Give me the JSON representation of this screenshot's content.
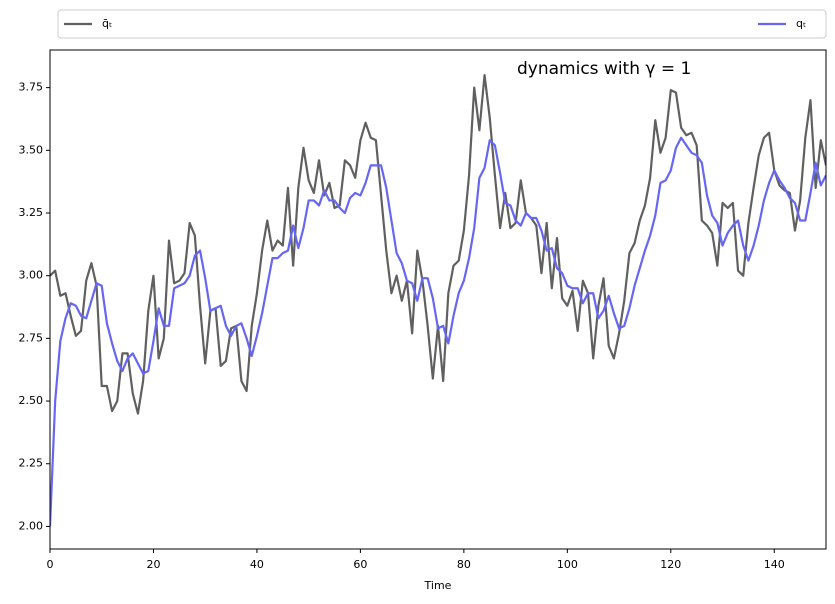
{
  "chart_data": {
    "type": "line",
    "annotation": "dynamics with γ = 1",
    "xlabel": "Time",
    "x": [
      0,
      1,
      2,
      3,
      4,
      5,
      6,
      7,
      8,
      9,
      10,
      11,
      12,
      13,
      14,
      15,
      16,
      17,
      18,
      19,
      20,
      21,
      22,
      23,
      24,
      25,
      26,
      27,
      28,
      29,
      30,
      31,
      32,
      33,
      34,
      35,
      36,
      37,
      38,
      39,
      40,
      41,
      42,
      43,
      44,
      45,
      46,
      47,
      48,
      49,
      50,
      51,
      52,
      53,
      54,
      55,
      56,
      57,
      58,
      59,
      60,
      61,
      62,
      63,
      64,
      65,
      66,
      67,
      68,
      69,
      70,
      71,
      72,
      73,
      74,
      75,
      76,
      77,
      78,
      79,
      80,
      81,
      82,
      83,
      84,
      85,
      86,
      87,
      88,
      89,
      90,
      91,
      92,
      93,
      94,
      95,
      96,
      97,
      98,
      99,
      100,
      101,
      102,
      103,
      104,
      105,
      106,
      107,
      108,
      109,
      110,
      111,
      112,
      113,
      114,
      115,
      116,
      117,
      118,
      119,
      120,
      121,
      122,
      123,
      124,
      125,
      126,
      127,
      128,
      129,
      130,
      131,
      132,
      133,
      134,
      135,
      136,
      137,
      138,
      139,
      140,
      141,
      142,
      143,
      144,
      145,
      146,
      147,
      148,
      149,
      150
    ],
    "series": [
      {
        "name": "q̄ₜ",
        "color": "#606060",
        "values": [
          3.0,
          3.02,
          2.92,
          2.93,
          2.84,
          2.76,
          2.78,
          2.98,
          3.05,
          2.96,
          2.56,
          2.56,
          2.46,
          2.5,
          2.69,
          2.69,
          2.53,
          2.45,
          2.58,
          2.86,
          3.0,
          2.67,
          2.75,
          3.14,
          2.97,
          2.98,
          3.01,
          3.21,
          3.16,
          2.88,
          2.65,
          2.86,
          2.87,
          2.64,
          2.66,
          2.79,
          2.8,
          2.58,
          2.54,
          2.8,
          2.93,
          3.1,
          3.22,
          3.1,
          3.14,
          3.12,
          3.35,
          3.04,
          3.35,
          3.51,
          3.38,
          3.33,
          3.46,
          3.32,
          3.37,
          3.27,
          3.28,
          3.46,
          3.44,
          3.39,
          3.54,
          3.61,
          3.55,
          3.54,
          3.32,
          3.1,
          2.93,
          3.0,
          2.9,
          2.98,
          2.77,
          3.1,
          2.98,
          2.8,
          2.59,
          2.8,
          2.58,
          2.93,
          3.04,
          3.06,
          3.18,
          3.4,
          3.75,
          3.58,
          3.8,
          3.63,
          3.4,
          3.19,
          3.33,
          3.19,
          3.21,
          3.38,
          3.25,
          3.23,
          3.2,
          3.01,
          3.21,
          2.95,
          3.15,
          2.91,
          2.88,
          2.94,
          2.78,
          2.98,
          2.93,
          2.67,
          2.88,
          2.99,
          2.72,
          2.67,
          2.77,
          2.9,
          3.09,
          3.13,
          3.22,
          3.28,
          3.39,
          3.62,
          3.49,
          3.55,
          3.74,
          3.73,
          3.59,
          3.56,
          3.57,
          3.52,
          3.22,
          3.2,
          3.17,
          3.04,
          3.29,
          3.27,
          3.29,
          3.02,
          3.0,
          3.21,
          3.35,
          3.48,
          3.55,
          3.57,
          3.42,
          3.36,
          3.34,
          3.33,
          3.18,
          3.3,
          3.55,
          3.7,
          3.35,
          3.54,
          3.44
        ]
      },
      {
        "name": "qₜ",
        "color": "#6666f5",
        "values": [
          2.0,
          2.5,
          2.74,
          2.83,
          2.89,
          2.88,
          2.84,
          2.83,
          2.9,
          2.97,
          2.96,
          2.81,
          2.73,
          2.66,
          2.62,
          2.67,
          2.69,
          2.65,
          2.61,
          2.62,
          2.74,
          2.87,
          2.8,
          2.8,
          2.95,
          2.96,
          2.97,
          3.0,
          3.08,
          3.1,
          2.99,
          2.86,
          2.87,
          2.88,
          2.8,
          2.76,
          2.8,
          2.81,
          2.75,
          2.68,
          2.76,
          2.85,
          2.96,
          3.07,
          3.07,
          3.09,
          3.1,
          3.2,
          3.11,
          3.19,
          3.3,
          3.3,
          3.28,
          3.34,
          3.3,
          3.3,
          3.27,
          3.25,
          3.31,
          3.33,
          3.32,
          3.37,
          3.44,
          3.44,
          3.44,
          3.35,
          3.22,
          3.09,
          3.05,
          2.98,
          2.97,
          2.9,
          2.99,
          2.99,
          2.91,
          2.79,
          2.8,
          2.73,
          2.84,
          2.93,
          2.98,
          3.07,
          3.19,
          3.39,
          3.43,
          3.54,
          3.52,
          3.41,
          3.29,
          3.28,
          3.22,
          3.2,
          3.25,
          3.23,
          3.23,
          3.18,
          3.1,
          3.11,
          3.03,
          3.01,
          2.96,
          2.95,
          2.95,
          2.89,
          2.93,
          2.93,
          2.83,
          2.86,
          2.92,
          2.85,
          2.79,
          2.8,
          2.87,
          2.96,
          3.03,
          3.1,
          3.16,
          3.24,
          3.37,
          3.38,
          3.42,
          3.51,
          3.55,
          3.52,
          3.49,
          3.48,
          3.45,
          3.32,
          3.24,
          3.21,
          3.12,
          3.17,
          3.2,
          3.22,
          3.12,
          3.06,
          3.12,
          3.2,
          3.3,
          3.37,
          3.42,
          3.38,
          3.35,
          3.31,
          3.29,
          3.22,
          3.22,
          3.33,
          3.45,
          3.36,
          3.4
        ]
      }
    ],
    "xlim": [
      0,
      150
    ],
    "xticks": [
      0,
      20,
      40,
      60,
      80,
      100,
      120,
      140
    ],
    "ylim": [
      1.91,
      3.9
    ],
    "yticks": [
      {
        "value": 2,
        "label": "2.00"
      },
      2.25,
      {
        "value": 2.5,
        "label": "2.50"
      },
      2.75,
      {
        "value": 3,
        "label": "3.00"
      },
      3.25,
      {
        "value": 3.5,
        "label": "3.50"
      },
      3.75
    ],
    "legend": "top",
    "grid": false
  }
}
